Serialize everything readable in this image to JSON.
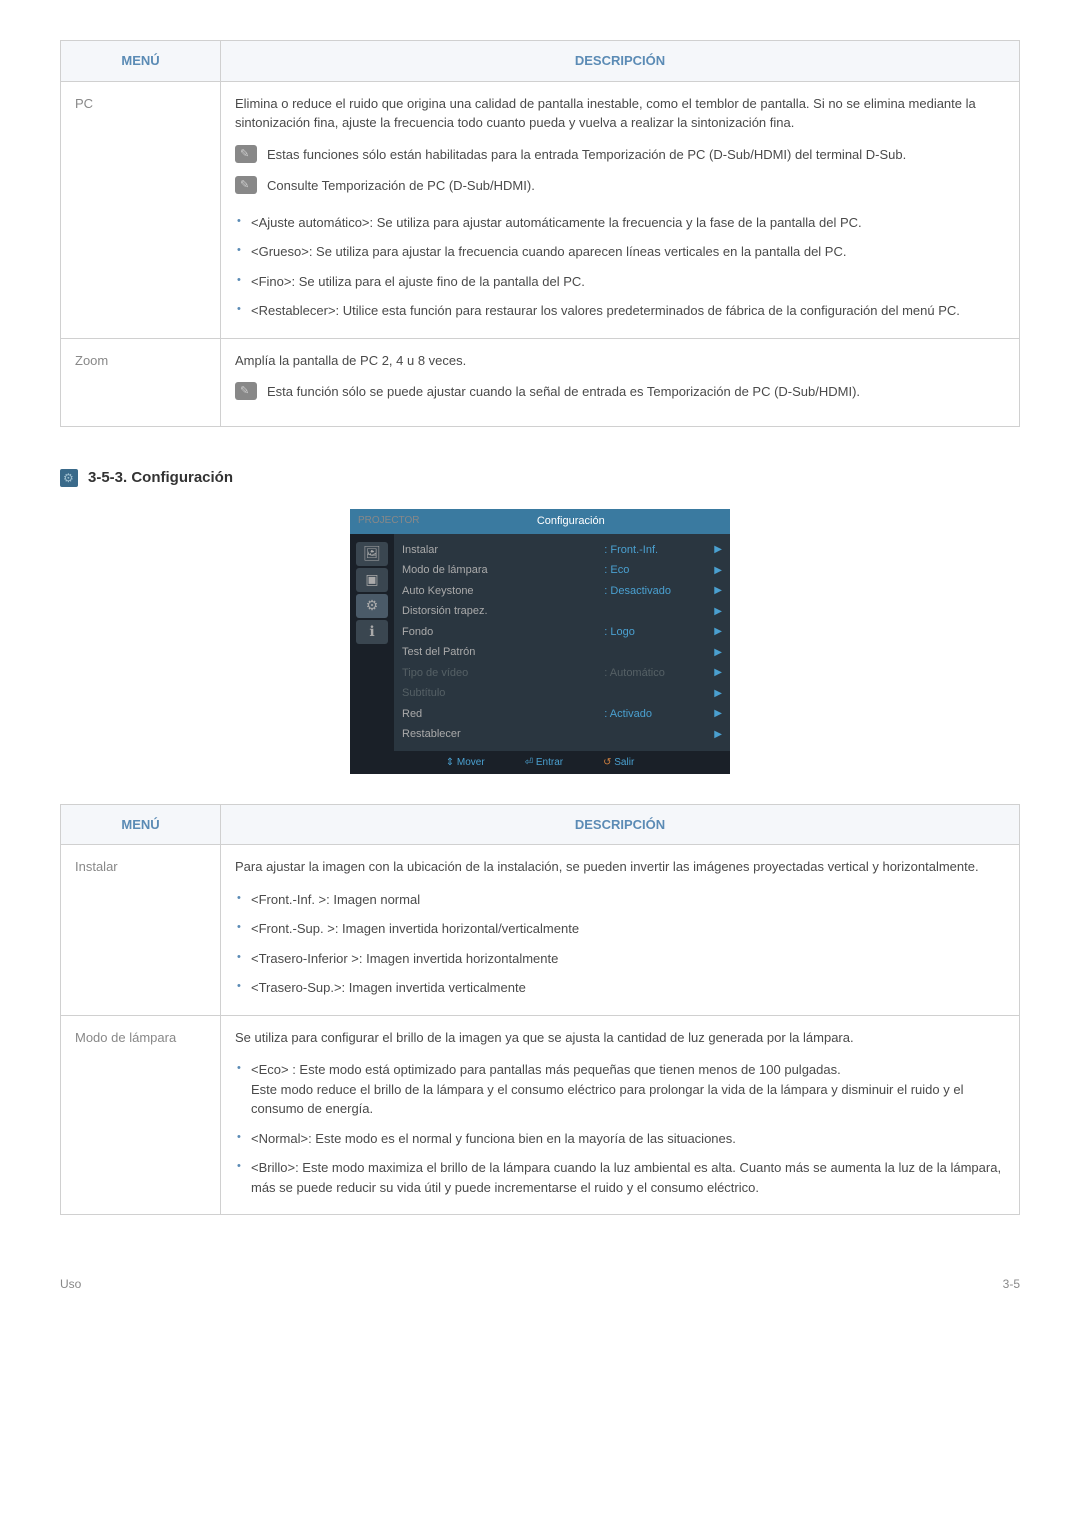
{
  "table1": {
    "header_menu": "MENÚ",
    "header_desc": "DESCRIPCIÓN",
    "rows": {
      "pc": {
        "label": "PC",
        "intro": "Elimina o reduce el ruido que origina una calidad de pantalla inestable, como el temblor de pantalla. Si no se elimina mediante la sintonización fina, ajuste la frecuencia todo cuanto pueda y vuelva a realizar la sintonización fina.",
        "note1": "Estas funciones sólo están habilitadas para la entrada Temporización de PC (D-Sub/HDMI) del terminal D-Sub.",
        "note2": "Consulte Temporización de PC (D-Sub/HDMI).",
        "items": [
          "<Ajuste automático>: Se utiliza para ajustar automáticamente la frecuencia y la fase de la pantalla del PC.",
          "<Grueso>: Se utiliza para ajustar la frecuencia cuando aparecen líneas verticales en la pantalla del PC.",
          "<Fino>: Se utiliza para el ajuste fino de la pantalla del PC.",
          "<Restablecer>: Utilice esta función para restaurar los valores predeterminados de fábrica de la configuración del menú PC."
        ]
      },
      "zoom": {
        "label": "Zoom",
        "intro": "Amplía la pantalla de PC 2, 4 u 8 veces.",
        "note": "Esta función sólo se puede ajustar cuando la señal de entrada es Temporización de PC (D-Sub/HDMI)."
      }
    }
  },
  "section": {
    "number": "3-5-3. Configuración"
  },
  "osd": {
    "brand": "PROJECTOR",
    "title": "Configuración",
    "rows": [
      {
        "label": "Instalar",
        "value": ": Front.-Inf.",
        "dim": false
      },
      {
        "label": "Modo de lámpara",
        "value": ": Eco",
        "dim": false
      },
      {
        "label": "Auto Keystone",
        "value": ": Desactivado",
        "dim": false
      },
      {
        "label": "Distorsión trapez.",
        "value": "",
        "dim": false
      },
      {
        "label": "Fondo",
        "value": ": Logo",
        "dim": false
      },
      {
        "label": "Test del Patrón",
        "value": "",
        "dim": false
      },
      {
        "label": "Tipo de vídeo",
        "value": ": Automático",
        "dim": true
      },
      {
        "label": "Subtítulo",
        "value": "",
        "dim": true
      },
      {
        "label": "Red",
        "value": ": Activado",
        "dim": false
      },
      {
        "label": "Restablecer",
        "value": "",
        "dim": false
      }
    ],
    "footer": {
      "move": "Mover",
      "enter": "Entrar",
      "exit": "Salir"
    }
  },
  "table2": {
    "header_menu": "MENÚ",
    "header_desc": "DESCRIPCIÓN",
    "rows": {
      "instalar": {
        "label": "Instalar",
        "intro": "Para ajustar la imagen con la ubicación de la instalación, se pueden invertir las imágenes proyectadas vertical y horizontalmente.",
        "items": [
          "<Front.-Inf. >: Imagen normal",
          "<Front.-Sup. >: Imagen invertida horizontal/verticalmente",
          "<Trasero-Inferior >: Imagen invertida horizontalmente",
          "<Trasero-Sup.>: Imagen invertida verticalmente"
        ]
      },
      "lampara": {
        "label": "Modo de lámpara",
        "intro": "Se utiliza para configurar el brillo de la imagen ya que se ajusta la cantidad de luz generada por la lámpara.",
        "eco_line1": "<Eco> : Este modo está optimizado para pantallas más pequeñas que tienen menos de 100 pulgadas.",
        "eco_line2": "Este modo reduce el brillo de la lámpara y el consumo eléctrico para prolongar la vida de la lámpara y disminuir el ruido y el consumo de energía.",
        "normal": "<Normal>: Este modo es el normal y funciona bien en la mayoría de las situaciones.",
        "brillo": "<Brillo>: Este modo maximiza el brillo de la lámpara cuando la luz ambiental es alta. Cuanto más se aumenta la luz de la lámpara, más se puede reducir su vida útil y puede incrementarse el ruido y el consumo eléctrico."
      }
    }
  },
  "footer": {
    "left": "Uso",
    "right": "3-5"
  }
}
